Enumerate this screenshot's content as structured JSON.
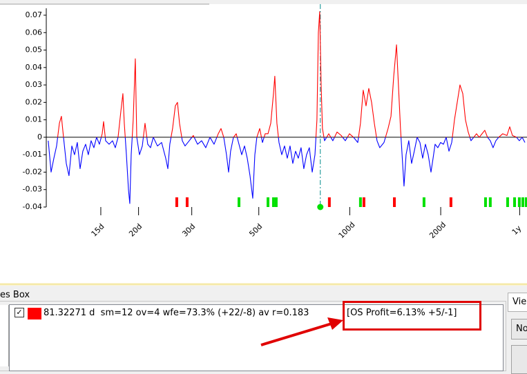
{
  "chart_data": {
    "type": "line",
    "color_positive": "#ff0000",
    "color_negative": "#0000ff",
    "log_x": true,
    "xlim": [
      9.9,
      386
    ],
    "ylim": [
      -0.04,
      0.07
    ],
    "yticks": [
      0.07,
      0.06,
      0.05,
      0.04,
      0.03,
      0.02,
      0.01,
      0,
      -0.01,
      -0.02,
      -0.03,
      -0.04
    ],
    "xticks": [
      {
        "value": 15,
        "label": "15d"
      },
      {
        "value": 20,
        "label": "20d"
      },
      {
        "value": 30,
        "label": "30d"
      },
      {
        "value": 50,
        "label": "50d"
      },
      {
        "value": 100,
        "label": "100d"
      },
      {
        "value": 200,
        "label": "200d"
      },
      {
        "value": 365,
        "label": "1y"
      }
    ],
    "x": [
      10.05,
      10.27,
      10.49,
      10.71,
      10.94,
      11.11,
      11.29,
      11.53,
      11.77,
      12.03,
      12.28,
      12.54,
      12.81,
      13.08,
      13.36,
      13.64,
      13.93,
      14.23,
      14.53,
      14.84,
      15.16,
      15.32,
      15.56,
      15.98,
      16.4,
      16.75,
      17.11,
      17.48,
      17.75,
      17.94,
      18.23,
      18.52,
      18.71,
      18.91,
      19.2,
      19.51,
      19.73,
      20.14,
      20.58,
      21.01,
      21.45,
      21.91,
      22.38,
      23.1,
      23.84,
      24.6,
      25.0,
      25.38,
      25.92,
      26.47,
      26.9,
      27.33,
      27.91,
      28.5,
      29.43,
      30.36,
      31.35,
      32.34,
      33.38,
      34.46,
      35.55,
      36.71,
      37.49,
      38.28,
      39.09,
      39.72,
      40.33,
      41.22,
      42.1,
      42.99,
      43.9,
      44.84,
      45.79,
      46.76,
      47.75,
      48.52,
      49.26,
      50.35,
      51.42,
      52.5,
      53.63,
      54.77,
      55.92,
      56.49,
      57.4,
      58.32,
      59.56,
      60.83,
      62.12,
      63.44,
      64.79,
      66.17,
      67.56,
      69.0,
      70.47,
      71.96,
      73.49,
      75.12,
      76.71,
      77.87,
      78.73,
      79.53,
      80.4,
      81.21,
      82.52,
      85.2,
      87.89,
      90.75,
      93.7,
      96.65,
      99.78,
      102.9,
      106.3,
      108.5,
      110.8,
      113.2,
      115.6,
      118.1,
      120.6,
      123.1,
      125.7,
      129.8,
      133.9,
      136.9,
      139.8,
      142.8,
      144.9,
      147.2,
      149.6,
      151.2,
      153.6,
      156.8,
      160.2,
      163.5,
      167.1,
      170.7,
      174.3,
      178.0,
      181.8,
      185.7,
      188.7,
      191.6,
      195.6,
      199.8,
      204.2,
      208.5,
      213.0,
      217.5,
      222.1,
      226.8,
      231.6,
      236.6,
      241.5,
      246.6,
      251.9,
      257.2,
      262.7,
      268.3,
      274.0,
      279.8,
      285.7,
      291.8,
      298.0,
      304.5,
      311.1,
      320.9,
      331.3,
      338.4,
      345.5,
      356.4,
      364.1,
      372.0,
      380.0
    ],
    "values": [
      -0.002,
      -0.02,
      -0.012,
      -0.005,
      0.008,
      0.012,
      0.0,
      -0.015,
      -0.022,
      -0.005,
      -0.01,
      -0.003,
      -0.018,
      -0.008,
      -0.004,
      -0.01,
      -0.002,
      -0.006,
      0.0,
      -0.004,
      0.002,
      0.009,
      -0.002,
      -0.004,
      -0.002,
      -0.006,
      0.0,
      0.015,
      0.025,
      0.008,
      -0.01,
      -0.03,
      -0.038,
      -0.01,
      0.01,
      0.045,
      0.0,
      -0.01,
      -0.005,
      0.008,
      -0.004,
      -0.006,
      0.0,
      -0.005,
      -0.003,
      -0.012,
      -0.018,
      -0.004,
      0.005,
      0.018,
      0.02,
      0.008,
      -0.002,
      -0.005,
      -0.002,
      0.001,
      -0.004,
      -0.002,
      -0.006,
      0.0,
      -0.004,
      0.002,
      0.005,
      0.0,
      -0.01,
      -0.02,
      -0.008,
      0.0,
      0.002,
      -0.004,
      -0.01,
      -0.005,
      -0.012,
      -0.022,
      -0.035,
      -0.01,
      0.0,
      0.005,
      -0.003,
      0.002,
      0.002,
      0.008,
      0.025,
      0.035,
      0.008,
      -0.003,
      -0.01,
      -0.005,
      -0.012,
      -0.005,
      -0.015,
      -0.008,
      -0.012,
      -0.006,
      -0.018,
      -0.01,
      -0.006,
      -0.02,
      -0.01,
      0.01,
      0.06,
      0.072,
      0.03,
      0.005,
      -0.002,
      0.002,
      -0.002,
      0.003,
      0.001,
      -0.002,
      0.002,
      0.0,
      -0.003,
      0.008,
      0.027,
      0.018,
      0.028,
      0.02,
      0.008,
      -0.002,
      -0.006,
      -0.003,
      0.005,
      0.012,
      0.035,
      0.053,
      0.03,
      0.005,
      -0.015,
      -0.028,
      -0.01,
      -0.002,
      -0.015,
      -0.008,
      0.0,
      -0.003,
      -0.012,
      -0.004,
      -0.01,
      -0.02,
      -0.012,
      -0.004,
      -0.006,
      -0.003,
      -0.004,
      0.0,
      -0.008,
      -0.003,
      0.01,
      0.02,
      0.03,
      0.025,
      0.01,
      0.003,
      -0.002,
      0.0,
      0.002,
      0.0,
      0.002,
      0.004,
      0.0,
      -0.002,
      -0.006,
      -0.002,
      0.0,
      0.002,
      0.001,
      0.006,
      0.001,
      0.0,
      -0.002,
      0.0,
      -0.003
    ],
    "markers": [
      {
        "x": 26.76,
        "color": "#ff0000"
      },
      {
        "x": 28.96,
        "color": "#ff0000"
      },
      {
        "x": 85.6,
        "color": "#ff0000"
      },
      {
        "x": 111.4,
        "color": "#ff0000"
      },
      {
        "x": 140.5,
        "color": "#ff0000"
      },
      {
        "x": 216.2,
        "color": "#ff0000"
      },
      {
        "x": 42.99,
        "color": "#00e000"
      },
      {
        "x": 53.63,
        "color": "#00e000"
      },
      {
        "x": 55.92,
        "color": "#00e000"
      },
      {
        "x": 57.1,
        "color": "#00e000"
      },
      {
        "x": 108.5,
        "color": "#00e000"
      },
      {
        "x": 176.1,
        "color": "#00e000"
      },
      {
        "x": 281.4,
        "color": "#00e000"
      },
      {
        "x": 291.8,
        "color": "#00e000"
      },
      {
        "x": 333.0,
        "color": "#00e000"
      },
      {
        "x": 351.1,
        "color": "#00e000"
      },
      {
        "x": 364.1,
        "color": "#00e000"
      },
      {
        "x": 373.9,
        "color": "#00e000"
      },
      {
        "x": 383.8,
        "color": "#00e000"
      }
    ],
    "cursor_x": 79.9,
    "cursor_color": "#008b8b"
  },
  "ui": {
    "panel_title": "es Box",
    "list_item": {
      "text": "81.32271 d  sm=12 ov=4 wfe=73.3% (+22/-8) av r=0.183",
      "highlight": "[OS Profit=6.13% +5/-1]"
    },
    "right_tab": "Vie",
    "right_button": "No"
  }
}
